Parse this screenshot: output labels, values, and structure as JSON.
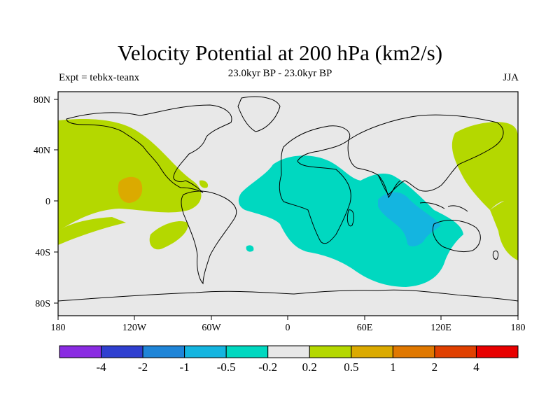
{
  "header": {
    "title": "Velocity Potential at 200 hPa (km2/s)",
    "subtitle": "23.0kyr BP - 23.0kyr BP",
    "left_label": "Expt = tebkx-teanx",
    "right_label": "JJA"
  },
  "map": {
    "lat_ticks": [
      "80N",
      "40N",
      "0",
      "40S",
      "80S"
    ],
    "lon_ticks": [
      "180",
      "120W",
      "60W",
      "0",
      "60E",
      "120E",
      "180"
    ]
  },
  "colorbar": {
    "colors": [
      "#8a2be2",
      "#2f3fd0",
      "#1f85d8",
      "#14b5e0",
      "#00d8c0",
      "#e8e8e8",
      "#b4d800",
      "#dbaa00",
      "#e07800",
      "#e04000",
      "#e80000"
    ],
    "labels": [
      "-4",
      "-2",
      "-1",
      "-0.5",
      "-0.2",
      "0.2",
      "0.5",
      "1",
      "2",
      "4"
    ]
  },
  "colors": {
    "background": "#e8e8e8",
    "positive_weak": "#b4d800",
    "positive_mid": "#dbaa00",
    "negative_weak": "#00d8c0",
    "negative_mid": "#14b5e0"
  }
}
